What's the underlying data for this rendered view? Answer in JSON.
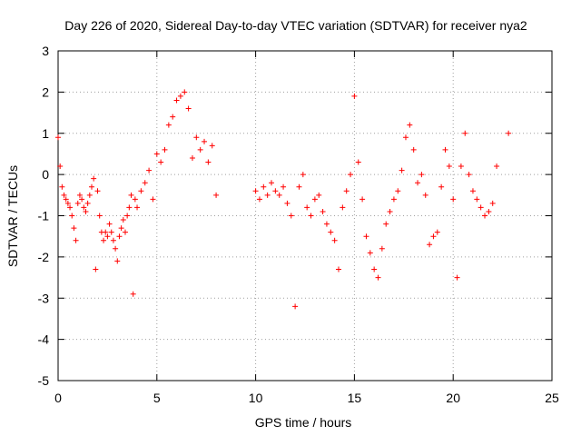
{
  "chart_data": {
    "type": "scatter",
    "title": "Day 226 of 2020, Sidereal Day-to-day VTEC variation (SDTVAR) for receiver nya2",
    "xlabel": "GPS time / hours",
    "ylabel": "SDTVAR / TECUs",
    "xlim": [
      0,
      25
    ],
    "ylim": [
      -5,
      3
    ],
    "xticks": [
      0,
      5,
      10,
      15,
      20,
      25
    ],
    "yticks": [
      -5,
      -4,
      -3,
      -2,
      -1,
      0,
      1,
      2,
      3
    ],
    "grid": true,
    "marker": "plus",
    "series": [
      {
        "name": "SDTVAR",
        "color": "#ff0000",
        "x": [
          0.0,
          0.1,
          0.2,
          0.3,
          0.4,
          0.5,
          0.6,
          0.7,
          0.8,
          0.9,
          1.0,
          1.1,
          1.2,
          1.3,
          1.4,
          1.5,
          1.6,
          1.7,
          1.8,
          1.9,
          2.0,
          2.1,
          2.2,
          2.3,
          2.4,
          2.5,
          2.6,
          2.7,
          2.8,
          2.9,
          3.0,
          3.1,
          3.2,
          3.3,
          3.4,
          3.5,
          3.6,
          3.7,
          3.8,
          3.9,
          4.0,
          4.2,
          4.4,
          4.6,
          4.8,
          5.0,
          5.2,
          5.4,
          5.6,
          5.8,
          6.0,
          6.2,
          6.4,
          6.6,
          6.8,
          7.0,
          7.2,
          7.4,
          7.6,
          7.8,
          8.0,
          10.0,
          10.2,
          10.4,
          10.6,
          10.8,
          11.0,
          11.2,
          11.4,
          11.6,
          11.8,
          12.0,
          12.2,
          12.4,
          12.6,
          12.8,
          13.0,
          13.2,
          13.4,
          13.6,
          13.8,
          14.0,
          14.2,
          14.4,
          14.6,
          14.8,
          15.0,
          15.2,
          15.4,
          15.6,
          15.8,
          16.0,
          16.2,
          16.4,
          16.6,
          16.8,
          17.0,
          17.2,
          17.4,
          17.6,
          17.8,
          18.0,
          18.2,
          18.4,
          18.6,
          18.8,
          19.0,
          19.2,
          19.4,
          19.6,
          19.8,
          20.0,
          20.2,
          20.4,
          20.6,
          20.8,
          21.0,
          21.2,
          21.4,
          21.6,
          21.8,
          22.0,
          22.2,
          22.8
        ],
        "y": [
          0.9,
          0.2,
          -0.3,
          -0.5,
          -0.6,
          -0.7,
          -0.8,
          -1.0,
          -1.3,
          -1.6,
          -0.7,
          -0.5,
          -0.6,
          -0.8,
          -0.9,
          -0.7,
          -0.5,
          -0.3,
          -0.1,
          -2.3,
          -0.4,
          -1.0,
          -1.4,
          -1.6,
          -1.4,
          -1.5,
          -1.2,
          -1.4,
          -1.6,
          -1.8,
          -2.1,
          -1.5,
          -1.3,
          -1.1,
          -1.4,
          -1.0,
          -0.8,
          -0.5,
          -2.9,
          -0.6,
          -0.8,
          -0.4,
          -0.2,
          0.1,
          -0.6,
          0.5,
          0.3,
          0.6,
          1.2,
          1.4,
          1.8,
          1.9,
          2.0,
          1.6,
          0.4,
          0.9,
          0.6,
          0.8,
          0.3,
          0.7,
          -0.5,
          -0.4,
          -0.6,
          -0.3,
          -0.5,
          -0.2,
          -0.4,
          -0.5,
          -0.3,
          -0.7,
          -1.0,
          -3.2,
          -0.3,
          0.0,
          -0.8,
          -1.0,
          -0.6,
          -0.5,
          -0.9,
          -1.2,
          -1.4,
          -1.6,
          -2.3,
          -0.8,
          -0.4,
          0.0,
          1.9,
          0.3,
          -0.6,
          -1.5,
          -1.9,
          -2.3,
          -2.5,
          -1.8,
          -1.2,
          -0.9,
          -0.6,
          -0.4,
          0.1,
          0.9,
          1.2,
          0.6,
          -0.2,
          0.0,
          -0.5,
          -1.7,
          -1.5,
          -1.4,
          -0.3,
          0.6,
          0.2,
          -0.6,
          -2.5,
          0.2,
          1.0,
          0.0,
          -0.4,
          -0.6,
          -0.8,
          -1.0,
          -0.9,
          -0.7,
          0.2,
          1.0
        ]
      }
    ]
  }
}
